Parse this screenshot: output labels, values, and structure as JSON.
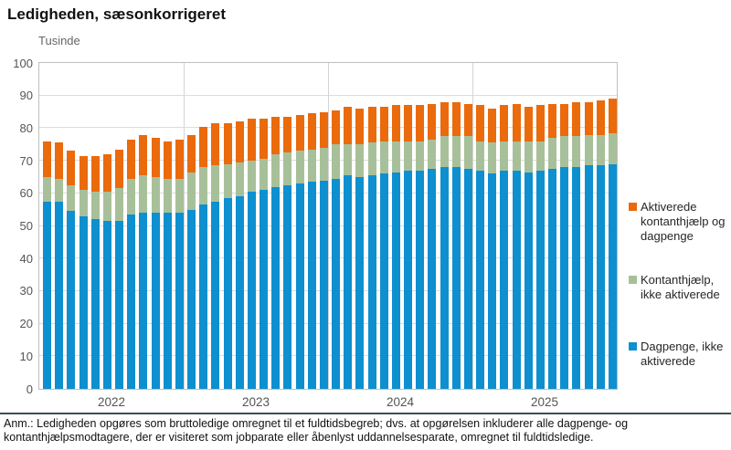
{
  "title": "Ledigheden, sæsonkorrigeret",
  "unit_label": "Tusinde",
  "note": {
    "line1": "Anm.: Ledigheden opgøres som bruttoledige omregnet til et fuldtidsbegreb; dvs. at opgørelsen inkluderer alle dagpenge- og",
    "line2": "kontanthjælpsmodtagere, der er visiteret som jobparate eller åbenlyst uddannelsesparate, omregnet til fuldtidsledige."
  },
  "colors": {
    "dagpenge_blue": "#0e8fd0",
    "kontanthjaelp_green": "#a8c09a",
    "aktiverede_orange": "#ea6a0c",
    "gridline": "#dcdcdc",
    "plot_border": "#bfbfbf",
    "axis_text": "#555555",
    "footnote_rule": "#3d4b52"
  },
  "chart_data": {
    "type": "bar",
    "stacked": true,
    "title": "Ledigheden, sæsonkorrigeret",
    "ylabel": "Tusinde",
    "xlabel": "",
    "ylim": [
      0,
      100
    ],
    "ytick_step": 10,
    "ytick_labels": [
      "0",
      "10",
      "20",
      "30",
      "40",
      "50",
      "60",
      "70",
      "80",
      "90",
      "100"
    ],
    "grid": true,
    "legend_position": "right",
    "x_year_labels": [
      "2022",
      "2023",
      "2024",
      "2025"
    ],
    "months_per_year": 12,
    "series": [
      {
        "name": "Dagpenge, ikke aktiverede",
        "color": "#0e8fd0",
        "values": [
          57.5,
          57.5,
          54.5,
          53,
          52,
          51.5,
          51.5,
          53.5,
          54,
          54,
          54,
          54,
          55,
          56.5,
          57.5,
          58.5,
          59,
          60.5,
          61,
          62,
          62.5,
          63,
          63.5,
          64,
          64.5,
          65.5,
          65,
          65.5,
          66,
          66.5,
          67,
          67,
          67.5,
          68,
          68,
          67.5,
          67,
          66,
          67,
          67,
          66.5,
          67,
          67.5,
          68,
          68,
          68.5,
          68.5,
          69
        ]
      },
      {
        "name": "Kontanthjælp, ikke aktiverede",
        "color": "#a8c09a",
        "values": [
          7.5,
          7,
          8,
          8,
          8.5,
          9,
          10,
          11,
          11.5,
          11,
          10.5,
          10.5,
          11.5,
          11.5,
          11,
          10.5,
          10.5,
          9.5,
          9.5,
          10,
          10,
          10,
          10,
          10,
          10.5,
          9.5,
          10,
          10,
          10,
          9.5,
          9,
          9,
          9,
          9.5,
          9.5,
          10,
          9,
          9.5,
          9,
          9,
          9.5,
          9,
          9.5,
          9.5,
          9.5,
          9.5,
          9.5,
          9.5
        ]
      },
      {
        "name": "Aktiverede kontanthjælp og dagpenge",
        "color": "#ea6a0c",
        "values": [
          11,
          11,
          10.5,
          10.5,
          11,
          11.5,
          12,
          12,
          12.5,
          12,
          11.5,
          12,
          11.5,
          12.5,
          13,
          12.5,
          12.5,
          13,
          12.5,
          11.5,
          11,
          11,
          11,
          11,
          10.5,
          11.5,
          11,
          11,
          10.5,
          11,
          11,
          11,
          11,
          10.5,
          10.5,
          10,
          11,
          10.5,
          11,
          11.5,
          10.5,
          11,
          10.5,
          10,
          10.5,
          10,
          10.5,
          10.5
        ]
      }
    ]
  }
}
